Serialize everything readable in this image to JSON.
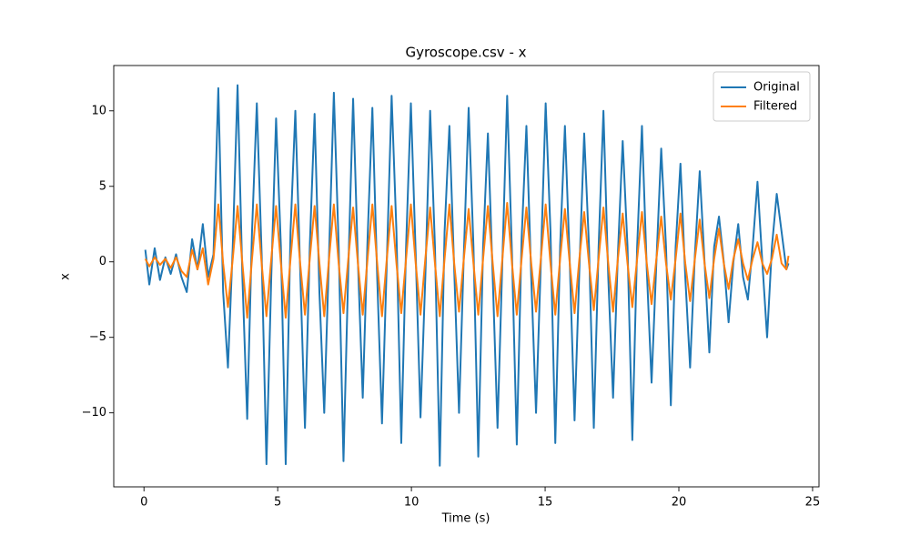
{
  "chart_data": {
    "type": "line",
    "title": "Gyroscope.csv - x",
    "x_label": "Time (s)",
    "y_label": "x",
    "xlim": [
      -1.13,
      25.24
    ],
    "ylim": [
      -14.9,
      13.0
    ],
    "xticks": [
      0,
      5,
      10,
      15,
      20,
      25
    ],
    "yticks": [
      {
        "value": -10,
        "label": "−10"
      },
      {
        "value": -5,
        "label": "−5"
      },
      0,
      5,
      10
    ],
    "legend": "upper right",
    "x": [
      0.05,
      0.2,
      0.4,
      0.6,
      0.8,
      1.0,
      1.2,
      1.4,
      1.6,
      1.8,
      2.0,
      2.2,
      2.4,
      2.6,
      2.78,
      2.96,
      3.14,
      3.32,
      3.5,
      3.68,
      3.86,
      4.04,
      4.22,
      4.4,
      4.58,
      4.76,
      4.94,
      5.12,
      5.3,
      5.48,
      5.66,
      5.84,
      6.02,
      6.2,
      6.38,
      6.56,
      6.74,
      6.92,
      7.1,
      7.28,
      7.46,
      7.64,
      7.82,
      8.0,
      8.18,
      8.36,
      8.54,
      8.72,
      8.9,
      9.08,
      9.26,
      9.44,
      9.62,
      9.8,
      9.98,
      10.16,
      10.34,
      10.52,
      10.7,
      10.88,
      11.06,
      11.24,
      11.42,
      11.6,
      11.78,
      11.96,
      12.14,
      12.32,
      12.5,
      12.68,
      12.86,
      13.04,
      13.22,
      13.4,
      13.58,
      13.76,
      13.94,
      14.12,
      14.3,
      14.48,
      14.66,
      14.84,
      15.02,
      15.2,
      15.38,
      15.56,
      15.74,
      15.92,
      16.1,
      16.28,
      16.46,
      16.64,
      16.82,
      17.0,
      17.18,
      17.36,
      17.54,
      17.72,
      17.9,
      18.08,
      18.26,
      18.44,
      18.62,
      18.8,
      18.98,
      19.16,
      19.34,
      19.52,
      19.7,
      19.88,
      20.06,
      20.24,
      20.42,
      20.6,
      20.78,
      20.96,
      21.14,
      21.32,
      21.5,
      21.68,
      21.86,
      22.04,
      22.22,
      22.4,
      22.58,
      22.76,
      22.94,
      23.12,
      23.3,
      23.48,
      23.66,
      23.84,
      24.02,
      24.1
    ],
    "series": [
      {
        "name": "Original",
        "color": "#1f77b4",
        "values": [
          0.8,
          -1.5,
          0.9,
          -1.2,
          0.3,
          -0.8,
          0.5,
          -1.0,
          -2.0,
          1.5,
          -0.5,
          2.5,
          -1.0,
          0.5,
          11.5,
          -2,
          -7.0,
          1,
          11.7,
          -1,
          -10.4,
          2,
          10.5,
          0.5,
          -13.4,
          -1,
          9.5,
          1,
          -13.4,
          2,
          10.0,
          -0.5,
          -11.0,
          1,
          9.8,
          -2,
          -10.0,
          0.5,
          11.2,
          1,
          -13.2,
          -0.5,
          10.8,
          0,
          -9.0,
          1.5,
          10.2,
          -1,
          -10.7,
          0,
          11.0,
          2,
          -12.0,
          1,
          10.5,
          0.5,
          -10.3,
          -1,
          10.0,
          1,
          -13.5,
          2,
          9.0,
          -0.5,
          -10.0,
          0.5,
          10.2,
          1,
          -12.9,
          1,
          8.5,
          -1,
          -11.0,
          0,
          11.0,
          0.5,
          -12.1,
          1.5,
          9.0,
          -1,
          -10.0,
          0,
          10.5,
          2,
          -12.0,
          1,
          9.0,
          0,
          -10.5,
          -0.5,
          8.5,
          1,
          -11.0,
          1,
          10.0,
          -1,
          -9.0,
          0.5,
          8.0,
          1,
          -11.8,
          1,
          9.0,
          -0.5,
          -8.0,
          0,
          7.5,
          1,
          -9.5,
          1,
          6.5,
          -1,
          -7.0,
          0.5,
          6.0,
          0,
          -6.0,
          1,
          3.0,
          0,
          -4.0,
          0,
          2.5,
          -1,
          -2.5,
          1,
          5.3,
          0,
          -5.0,
          1,
          4.5,
          2,
          -0.5,
          -0.1
        ]
      },
      {
        "name": "Filtered",
        "color": "#ff7f0e",
        "values": [
          0.2,
          -0.3,
          0.3,
          -0.2,
          0.2,
          -0.4,
          0.3,
          -0.6,
          -1.0,
          0.8,
          -0.5,
          0.9,
          -1.5,
          0.2,
          3.8,
          -0.1,
          -3.0,
          0.2,
          3.7,
          -0.1,
          -3.7,
          0.2,
          3.8,
          -0.1,
          -3.6,
          0.2,
          3.7,
          -0.1,
          -3.7,
          0.2,
          3.8,
          -0.1,
          -3.5,
          0.2,
          3.7,
          -0.1,
          -3.6,
          0.2,
          3.8,
          -0.1,
          -3.4,
          0.2,
          3.6,
          -0.1,
          -3.5,
          0.2,
          3.8,
          -0.1,
          -3.6,
          0.2,
          3.7,
          -0.1,
          -3.4,
          0.2,
          3.8,
          -0.1,
          -3.5,
          0.2,
          3.6,
          -0.1,
          -3.6,
          0.2,
          3.8,
          -0.1,
          -3.3,
          0.2,
          3.5,
          -0.1,
          -3.5,
          0.2,
          3.7,
          -0.1,
          -3.6,
          0.2,
          3.9,
          -0.1,
          -3.5,
          0.2,
          3.6,
          -0.1,
          -3.3,
          0.2,
          3.8,
          -0.1,
          -3.5,
          0.2,
          3.5,
          -0.1,
          -3.4,
          0.2,
          3.3,
          -0.1,
          -3.2,
          0.2,
          3.6,
          -0.1,
          -3.3,
          0.2,
          3.2,
          -0.1,
          -3.0,
          0.2,
          3.3,
          -0.1,
          -2.8,
          0.2,
          3.0,
          -0.1,
          -2.5,
          0.2,
          3.2,
          -0.1,
          -2.6,
          0.2,
          2.8,
          -0.1,
          -2.4,
          0.2,
          2.2,
          -0.1,
          -1.8,
          0.2,
          1.5,
          -0.1,
          -1.2,
          0.2,
          1.3,
          -0.1,
          -0.8,
          0.2,
          1.8,
          -0.1,
          -0.5,
          0.4
        ]
      }
    ]
  }
}
